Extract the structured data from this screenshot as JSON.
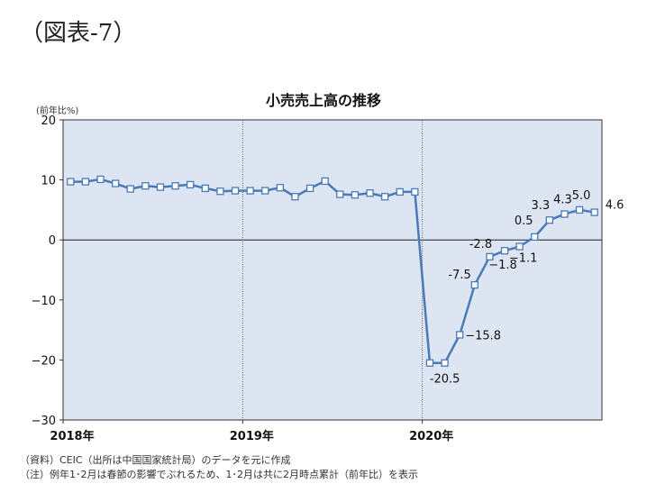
{
  "figure_label": "（図表-7）",
  "notes": [
    "（資料）CEIC（出所は中国国家統計局）のデータを元に作成",
    "（注）例年1･2月は春節の影響でぶれるため、1･2月は共に2月時点累計（前年比）を表示"
  ],
  "chart_data": {
    "type": "line",
    "title": "小売売上高の推移",
    "ylabel": "(前年比%)",
    "ylim": [
      -30,
      20
    ],
    "yticks": [
      20,
      10,
      0,
      -10,
      -20,
      -30
    ],
    "x_start": "2018-01",
    "x_end": "2020-12",
    "xtick_labels": [
      "2018年",
      "2019年",
      "2020年"
    ],
    "grid": "year dividers",
    "colors": {
      "line": "#4a7ab8",
      "plot_bg": "#dce5f1",
      "marker_fill": "#ffffff"
    },
    "series": [
      {
        "x": [
          "2018-01",
          "2018-02",
          "2018-03",
          "2018-04",
          "2018-05",
          "2018-06",
          "2018-07",
          "2018-08",
          "2018-09",
          "2018-10",
          "2018-11",
          "2018-12",
          "2019-01",
          "2019-02",
          "2019-03",
          "2019-04",
          "2019-05",
          "2019-06",
          "2019-07",
          "2019-08",
          "2019-09",
          "2019-10",
          "2019-11",
          "2019-12",
          "2020-01",
          "2020-02",
          "2020-03",
          "2020-04",
          "2020-05",
          "2020-06",
          "2020-07",
          "2020-08",
          "2020-09",
          "2020-10",
          "2020-11",
          "2020-12"
        ],
        "values": [
          9.7,
          9.7,
          10.1,
          9.4,
          8.5,
          9.0,
          8.8,
          9.0,
          9.2,
          8.6,
          8.1,
          8.2,
          8.2,
          8.2,
          8.7,
          7.2,
          8.6,
          9.8,
          7.6,
          7.5,
          7.8,
          7.2,
          8.0,
          8.0,
          -20.5,
          -20.5,
          -15.8,
          -7.5,
          -2.8,
          -1.8,
          -1.1,
          0.5,
          3.3,
          4.3,
          5.0,
          4.6
        ]
      }
    ],
    "data_labels": [
      {
        "x": "2020-02",
        "text": "-20.5"
      },
      {
        "x": "2020-03",
        "text": "−15.8"
      },
      {
        "x": "2020-04",
        "text": "-7.5"
      },
      {
        "x": "2020-05",
        "text": "-2.8"
      },
      {
        "x": "2020-06",
        "text": "−1.8"
      },
      {
        "x": "2020-07",
        "text": "−1.1"
      },
      {
        "x": "2020-08",
        "text": "0.5"
      },
      {
        "x": "2020-09",
        "text": "3.3"
      },
      {
        "x": "2020-10",
        "text": "4.3"
      },
      {
        "x": "2020-11",
        "text": "5.0"
      },
      {
        "x": "2020-12",
        "text": "4.6"
      }
    ]
  }
}
